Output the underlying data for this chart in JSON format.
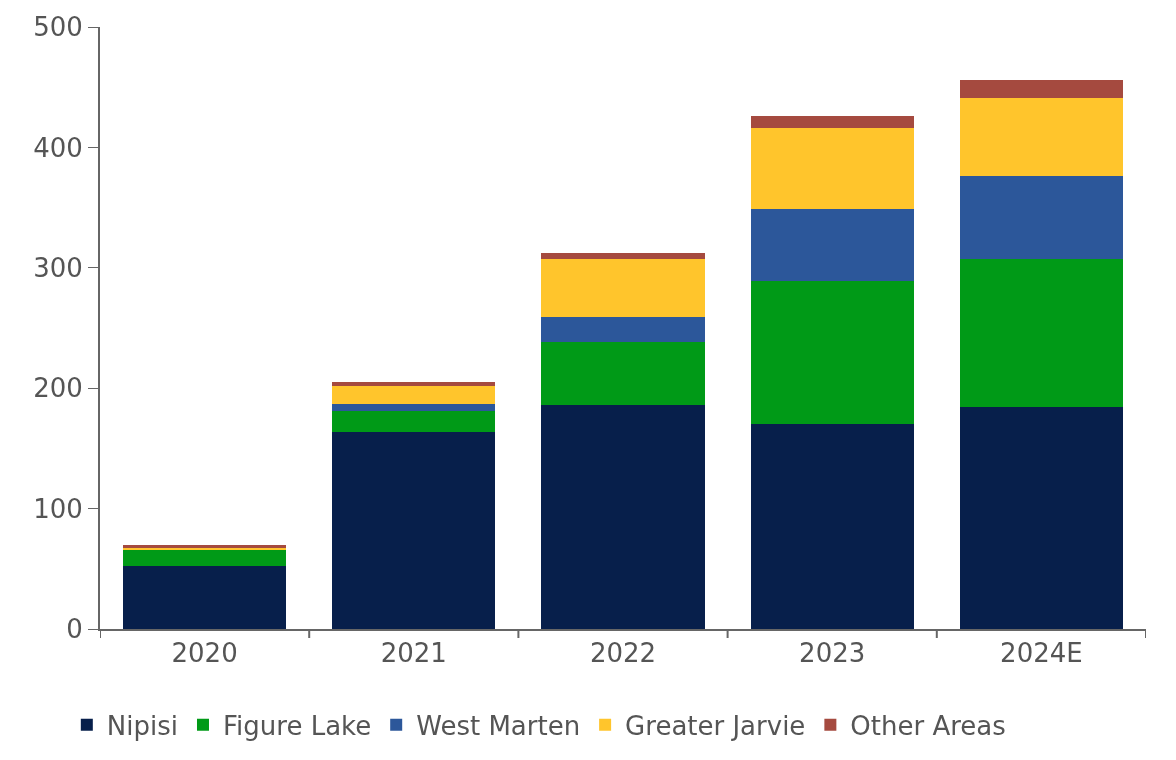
{
  "chart_data": {
    "type": "bar",
    "stacked": true,
    "categories": [
      "2020",
      "2021",
      "2022",
      "2023",
      "2024E"
    ],
    "series": [
      {
        "name": "Nipisi",
        "color": "#071f4b",
        "values": [
          52,
          164,
          186,
          170,
          184
        ]
      },
      {
        "name": "Figure Lake",
        "color": "#009a17",
        "values": [
          14,
          17,
          52,
          119,
          123
        ]
      },
      {
        "name": "West Marten",
        "color": "#2c579a",
        "values": [
          null,
          6,
          21,
          60,
          69
        ]
      },
      {
        "name": "Greater Jarvie",
        "color": "#ffc52c",
        "values": [
          1,
          15,
          48,
          67,
          65
        ]
      },
      {
        "name": "Other Areas",
        "color": "#a54a3f",
        "values": [
          3,
          3,
          5,
          10,
          15
        ]
      }
    ],
    "ylim": [
      0,
      500
    ],
    "yticks": [
      0,
      100,
      200,
      300,
      400,
      500
    ],
    "legend": "bottom"
  }
}
